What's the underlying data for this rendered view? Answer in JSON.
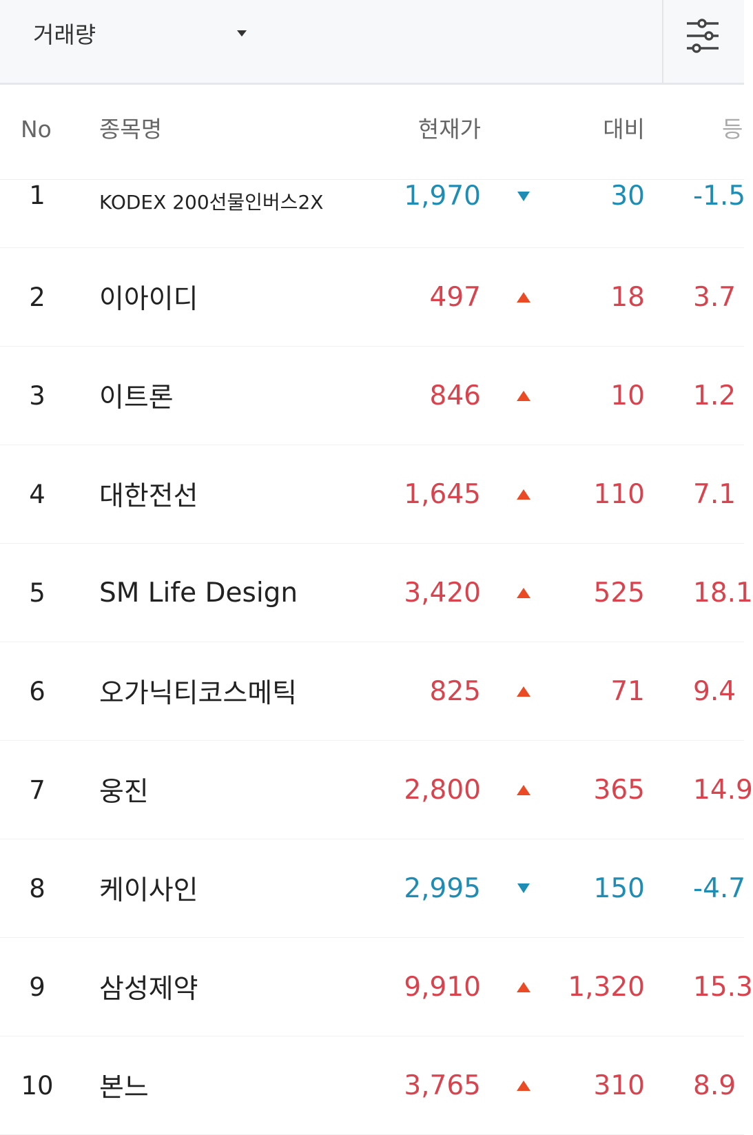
{
  "toolbar": {
    "sort_label": "거래량",
    "filter_icon": "sliders-icon"
  },
  "columns": {
    "no": "No",
    "name": "종목명",
    "price": "현재가",
    "diff": "대비",
    "rate": "등"
  },
  "rows": [
    {
      "no": "1",
      "name": "KODEX 200선물인버스2X",
      "price": "1,970",
      "direction": "down",
      "diff": "30",
      "rate": "-1.5"
    },
    {
      "no": "2",
      "name": "이아이디",
      "price": "497",
      "direction": "up",
      "diff": "18",
      "rate": "3.7"
    },
    {
      "no": "3",
      "name": "이트론",
      "price": "846",
      "direction": "up",
      "diff": "10",
      "rate": "1.2"
    },
    {
      "no": "4",
      "name": "대한전선",
      "price": "1,645",
      "direction": "up",
      "diff": "110",
      "rate": "7.1"
    },
    {
      "no": "5",
      "name": "SM Life Design",
      "price": "3,420",
      "direction": "up",
      "diff": "525",
      "rate": "18.1"
    },
    {
      "no": "6",
      "name": "오가닉티코스메틱",
      "price": "825",
      "direction": "up",
      "diff": "71",
      "rate": "9.4"
    },
    {
      "no": "7",
      "name": "웅진",
      "price": "2,800",
      "direction": "up",
      "diff": "365",
      "rate": "14.9"
    },
    {
      "no": "8",
      "name": "케이사인",
      "price": "2,995",
      "direction": "down",
      "diff": "150",
      "rate": "-4.7"
    },
    {
      "no": "9",
      "name": "삼성제약",
      "price": "9,910",
      "direction": "up",
      "diff": "1,320",
      "rate": "15.3"
    },
    {
      "no": "10",
      "name": "본느",
      "price": "3,765",
      "direction": "up",
      "diff": "310",
      "rate": "8.9"
    }
  ],
  "colors": {
    "up": "#d9434d",
    "up_arrow": "#ea4b24",
    "down": "#1e8db5"
  }
}
